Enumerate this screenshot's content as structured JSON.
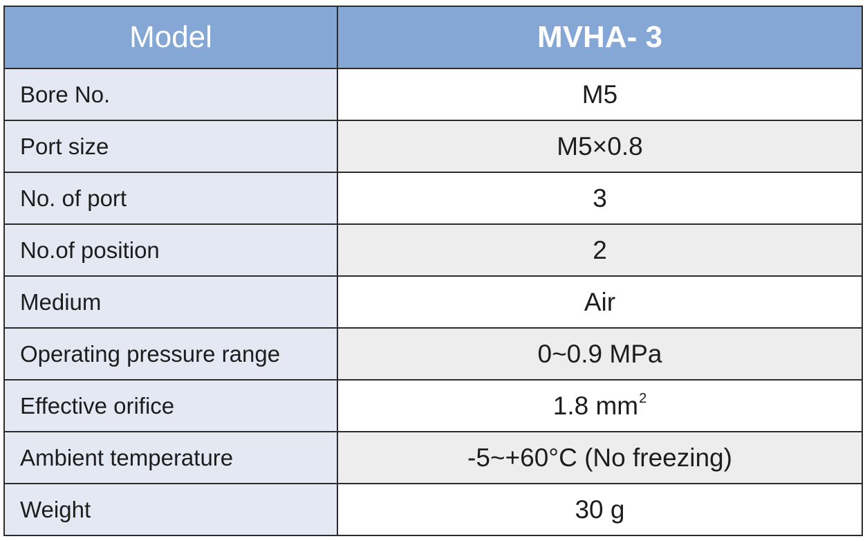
{
  "header": {
    "label": "Model",
    "value": "MVHA- 3"
  },
  "rows": [
    {
      "label": "Bore No.",
      "value": "M5"
    },
    {
      "label": "Port size",
      "value": "M5×0.8"
    },
    {
      "label": "No. of port",
      "value": "3"
    },
    {
      "label": "No.of position",
      "value": "2"
    },
    {
      "label": "Medium",
      "value": "Air"
    },
    {
      "label": "Operating pressure range",
      "value": "0~0.9 MPa"
    },
    {
      "label": "Effective orifice",
      "value": "1.8 mm",
      "value_sup": "2"
    },
    {
      "label": "Ambient temperature",
      "value": "-5~+60°C (No freezing)"
    },
    {
      "label": "Weight",
      "value": "30 g"
    }
  ],
  "colors": {
    "header_bg": "#84a7d6",
    "label_bg": "#e3e8f3",
    "alt_value_bg": "#ededed",
    "border": "#2b2b2b"
  }
}
